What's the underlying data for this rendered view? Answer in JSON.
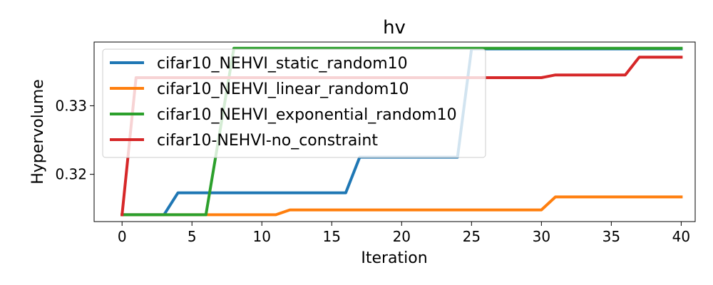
{
  "chart_data": {
    "type": "line",
    "title": "hv",
    "xlabel": "Iteration",
    "ylabel": "Hypervolume",
    "xlim": [
      -2,
      41
    ],
    "ylim": [
      0.3131,
      0.3393
    ],
    "xticks": [
      0,
      5,
      10,
      15,
      20,
      25,
      30,
      35,
      40
    ],
    "yticks": [
      0.32,
      0.33
    ],
    "ytick_labels": [
      "0.32",
      "0.33"
    ],
    "grid": false,
    "legend_position": "upper-left",
    "series": [
      {
        "name": "cifar10_NEHVI_static_random10",
        "color": "#1f77b4",
        "x": [
          0,
          3,
          4,
          16,
          17,
          24,
          25,
          40
        ],
        "y": [
          0.3141,
          0.3141,
          0.3173,
          0.3173,
          0.3225,
          0.3225,
          0.3383,
          0.3383
        ]
      },
      {
        "name": "cifar10_NEHVI_linear_random10",
        "color": "#ff7f0e",
        "x": [
          0,
          11,
          12,
          30,
          31,
          40
        ],
        "y": [
          0.3141,
          0.3141,
          0.3148,
          0.3148,
          0.3167,
          0.3167
        ]
      },
      {
        "name": "cifar10_NEHVI_exponential_random10",
        "color": "#2ca02c",
        "x": [
          0,
          6,
          8,
          40
        ],
        "y": [
          0.3141,
          0.3141,
          0.3384,
          0.3384
        ]
      },
      {
        "name": "cifar10-NEHVI-no_constraint",
        "color": "#d62728",
        "x": [
          0,
          1,
          30,
          31,
          36,
          37,
          40
        ],
        "y": [
          0.3141,
          0.3341,
          0.3341,
          0.3345,
          0.3345,
          0.3371,
          0.3371
        ]
      }
    ]
  }
}
